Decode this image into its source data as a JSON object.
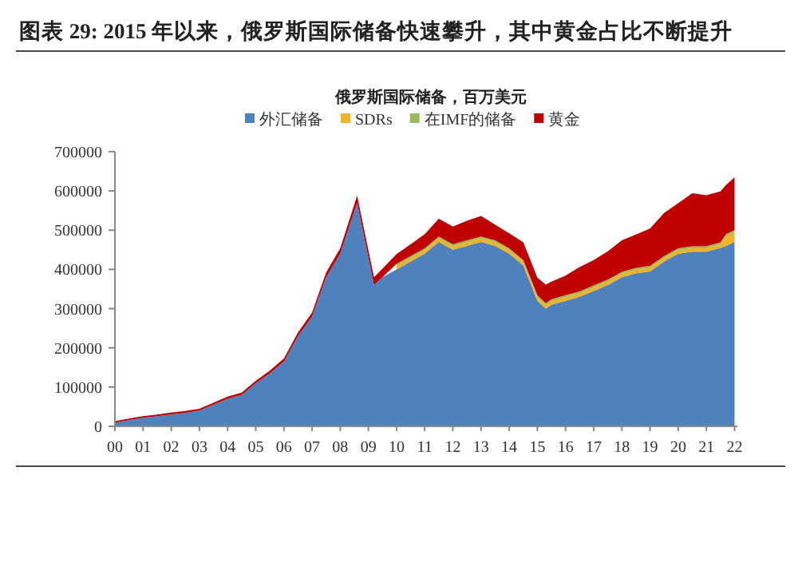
{
  "chart_data": {
    "type": "area",
    "stacked": true,
    "title": "图表 29: 2015 年以来，俄罗斯国际储备快速攀升，其中黄金占比不断提升",
    "subtitle": "俄罗斯国际储备，百万美元",
    "x": [
      2000,
      2000.5,
      2001,
      2001.5,
      2002,
      2002.5,
      2003,
      2003.5,
      2004,
      2004.5,
      2005,
      2005.5,
      2006,
      2006.5,
      2007,
      2007.5,
      2008,
      2008.6,
      2009.2,
      2009.5,
      2010,
      2010.5,
      2011,
      2011.5,
      2012,
      2012.5,
      2013,
      2013.5,
      2014,
      2014.5,
      2015,
      2015.3,
      2015.5,
      2016,
      2016.5,
      2017,
      2017.5,
      2018,
      2018.5,
      2019,
      2019.5,
      2020,
      2020.5,
      2021,
      2021.5,
      2021.7,
      2022
    ],
    "series": [
      {
        "name": "外汇储备",
        "color": "#4f81bd",
        "values": [
          9000,
          16000,
          22000,
          26000,
          30000,
          34000,
          40000,
          55000,
          70000,
          80000,
          110000,
          135000,
          165000,
          230000,
          280000,
          380000,
          440000,
          570000,
          360000,
          380000,
          400000,
          420000,
          440000,
          470000,
          450000,
          460000,
          470000,
          460000,
          440000,
          410000,
          320000,
          300000,
          310000,
          320000,
          330000,
          345000,
          360000,
          380000,
          390000,
          395000,
          420000,
          440000,
          445000,
          445000,
          455000,
          460000,
          470000
        ]
      },
      {
        "name": "SDRs",
        "color": "#f0b323",
        "values": [
          null,
          null,
          null,
          null,
          null,
          null,
          null,
          null,
          null,
          null,
          null,
          null,
          null,
          null,
          null,
          null,
          null,
          null,
          null,
          null,
          9000,
          9000,
          9000,
          9000,
          9000,
          9000,
          9000,
          9000,
          9000,
          9000,
          9000,
          9000,
          9000,
          9000,
          9000,
          9000,
          9000,
          9000,
          9000,
          9000,
          9000,
          9000,
          9000,
          9000,
          9000,
          25000,
          25000
        ]
      },
      {
        "name": "在IMF的储备",
        "color": "#9bbb59",
        "values": [
          null,
          null,
          null,
          null,
          null,
          null,
          null,
          null,
          null,
          null,
          null,
          null,
          null,
          null,
          null,
          null,
          null,
          null,
          null,
          null,
          5000,
          5000,
          5000,
          5000,
          5000,
          5000,
          5000,
          5000,
          5000,
          5000,
          5000,
          5000,
          5000,
          5000,
          5000,
          5000,
          5000,
          5000,
          5000,
          5000,
          5000,
          5000,
          5000,
          5000,
          5000,
          5000,
          5000
        ]
      },
      {
        "name": "黄金",
        "color": "#c00000",
        "values": [
          4000,
          4000,
          4000,
          4000,
          5000,
          5000,
          5000,
          5000,
          6000,
          6000,
          6000,
          7000,
          8000,
          9000,
          10000,
          12000,
          14000,
          18000,
          20000,
          22000,
          25000,
          30000,
          36000,
          45000,
          45000,
          50000,
          52000,
          40000,
          38000,
          45000,
          45000,
          47000,
          45000,
          50000,
          62000,
          65000,
          72000,
          80000,
          85000,
          95000,
          110000,
          115000,
          135000,
          130000,
          130000,
          125000,
          135000
        ]
      }
    ],
    "xlim": [
      2000,
      2022.1
    ],
    "xticks": [
      {
        "value": 2000,
        "label": "00"
      },
      {
        "value": 2001,
        "label": "01"
      },
      {
        "value": 2002,
        "label": "02"
      },
      {
        "value": 2003,
        "label": "03"
      },
      {
        "value": 2004,
        "label": "04"
      },
      {
        "value": 2005,
        "label": "05"
      },
      {
        "value": 2006,
        "label": "06"
      },
      {
        "value": 2007,
        "label": "07"
      },
      {
        "value": 2008,
        "label": "08"
      },
      {
        "value": 2009,
        "label": "09"
      },
      {
        "value": 2010,
        "label": "10"
      },
      {
        "value": 2011,
        "label": "11"
      },
      {
        "value": 2012,
        "label": "12"
      },
      {
        "value": 2013,
        "label": "13"
      },
      {
        "value": 2014,
        "label": "14"
      },
      {
        "value": 2015,
        "label": "15"
      },
      {
        "value": 2016,
        "label": "16"
      },
      {
        "value": 2017,
        "label": "17"
      },
      {
        "value": 2018,
        "label": "18"
      },
      {
        "value": 2019,
        "label": "19"
      },
      {
        "value": 2020,
        "label": "20"
      },
      {
        "value": 2021,
        "label": "21"
      },
      {
        "value": 2022,
        "label": "22"
      }
    ],
    "ylim": [
      0,
      700000
    ],
    "yticks": [
      0,
      100000,
      200000,
      300000,
      400000,
      500000,
      600000,
      700000
    ],
    "legend": "top",
    "grid": false
  }
}
